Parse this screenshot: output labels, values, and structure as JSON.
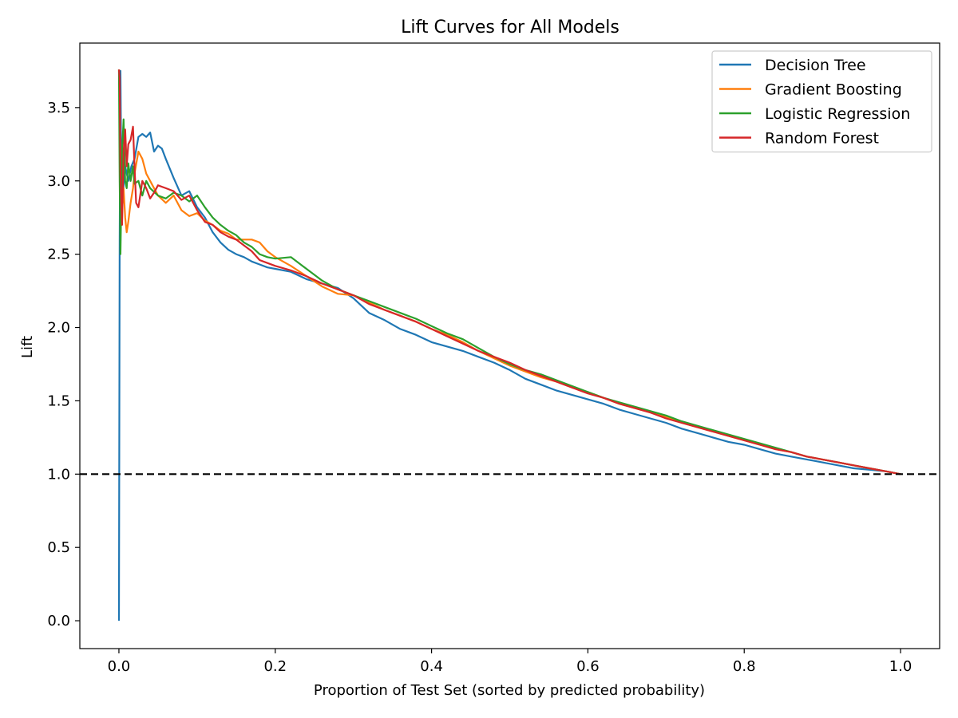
{
  "chart_data": {
    "type": "line",
    "title": "Lift Curves for All Models",
    "xlabel": "Proportion of Test Set (sorted by predicted probability)",
    "ylabel": "Lift",
    "xlim": [
      -0.05,
      1.05
    ],
    "ylim": [
      -0.19,
      3.94
    ],
    "xticks": [
      0.0,
      0.2,
      0.4,
      0.6,
      0.8,
      1.0
    ],
    "xtick_labels": [
      "0.0",
      "0.2",
      "0.4",
      "0.6",
      "0.8",
      "1.0"
    ],
    "yticks": [
      0.0,
      0.5,
      1.0,
      1.5,
      2.0,
      2.5,
      3.0,
      3.5
    ],
    "ytick_labels": [
      "0.0",
      "0.5",
      "1.0",
      "1.5",
      "2.0",
      "2.5",
      "3.0",
      "3.5"
    ],
    "grid": false,
    "legend_position": "top-right",
    "baseline": {
      "y": 1.0,
      "style": "dashed",
      "color": "#000000"
    },
    "series": [
      {
        "name": "Decision Tree",
        "color": "#1f77b4",
        "points": [
          [
            0.0,
            0.0
          ],
          [
            0.001,
            2.6
          ],
          [
            0.002,
            3.75
          ],
          [
            0.003,
            3.05
          ],
          [
            0.005,
            2.9
          ],
          [
            0.008,
            3.1
          ],
          [
            0.012,
            3.0
          ],
          [
            0.016,
            3.1
          ],
          [
            0.02,
            3.15
          ],
          [
            0.025,
            3.3
          ],
          [
            0.03,
            3.32
          ],
          [
            0.035,
            3.3
          ],
          [
            0.04,
            3.33
          ],
          [
            0.045,
            3.2
          ],
          [
            0.05,
            3.24
          ],
          [
            0.055,
            3.22
          ],
          [
            0.06,
            3.15
          ],
          [
            0.07,
            3.02
          ],
          [
            0.08,
            2.9
          ],
          [
            0.09,
            2.93
          ],
          [
            0.1,
            2.82
          ],
          [
            0.11,
            2.75
          ],
          [
            0.12,
            2.65
          ],
          [
            0.13,
            2.58
          ],
          [
            0.14,
            2.53
          ],
          [
            0.15,
            2.5
          ],
          [
            0.16,
            2.48
          ],
          [
            0.17,
            2.45
          ],
          [
            0.18,
            2.43
          ],
          [
            0.19,
            2.41
          ],
          [
            0.2,
            2.4
          ],
          [
            0.22,
            2.38
          ],
          [
            0.24,
            2.33
          ],
          [
            0.26,
            2.3
          ],
          [
            0.28,
            2.27
          ],
          [
            0.3,
            2.2
          ],
          [
            0.32,
            2.1
          ],
          [
            0.34,
            2.05
          ],
          [
            0.36,
            1.99
          ],
          [
            0.38,
            1.95
          ],
          [
            0.4,
            1.9
          ],
          [
            0.42,
            1.87
          ],
          [
            0.44,
            1.84
          ],
          [
            0.46,
            1.8
          ],
          [
            0.48,
            1.76
          ],
          [
            0.5,
            1.71
          ],
          [
            0.52,
            1.65
          ],
          [
            0.54,
            1.61
          ],
          [
            0.56,
            1.57
          ],
          [
            0.58,
            1.54
          ],
          [
            0.6,
            1.51
          ],
          [
            0.62,
            1.48
          ],
          [
            0.64,
            1.44
          ],
          [
            0.66,
            1.41
          ],
          [
            0.68,
            1.38
          ],
          [
            0.7,
            1.35
          ],
          [
            0.72,
            1.31
          ],
          [
            0.74,
            1.28
          ],
          [
            0.76,
            1.25
          ],
          [
            0.78,
            1.22
          ],
          [
            0.8,
            1.2
          ],
          [
            0.82,
            1.17
          ],
          [
            0.84,
            1.14
          ],
          [
            0.86,
            1.12
          ],
          [
            0.88,
            1.1
          ],
          [
            0.9,
            1.08
          ],
          [
            0.92,
            1.06
          ],
          [
            0.94,
            1.04
          ],
          [
            0.96,
            1.03
          ],
          [
            0.98,
            1.02
          ],
          [
            1.0,
            1.0
          ]
        ]
      },
      {
        "name": "Gradient Boosting",
        "color": "#ff7f0e",
        "points": [
          [
            0.0,
            3.76
          ],
          [
            0.001,
            3.55
          ],
          [
            0.002,
            3.1
          ],
          [
            0.004,
            2.8
          ],
          [
            0.006,
            2.95
          ],
          [
            0.008,
            2.75
          ],
          [
            0.01,
            2.65
          ],
          [
            0.012,
            2.72
          ],
          [
            0.015,
            2.85
          ],
          [
            0.018,
            2.95
          ],
          [
            0.02,
            3.05
          ],
          [
            0.025,
            3.2
          ],
          [
            0.03,
            3.15
          ],
          [
            0.035,
            3.05
          ],
          [
            0.04,
            3.0
          ],
          [
            0.05,
            2.9
          ],
          [
            0.06,
            2.85
          ],
          [
            0.07,
            2.9
          ],
          [
            0.08,
            2.8
          ],
          [
            0.09,
            2.76
          ],
          [
            0.1,
            2.78
          ],
          [
            0.11,
            2.73
          ],
          [
            0.12,
            2.7
          ],
          [
            0.13,
            2.66
          ],
          [
            0.14,
            2.64
          ],
          [
            0.15,
            2.6
          ],
          [
            0.16,
            2.6
          ],
          [
            0.17,
            2.6
          ],
          [
            0.18,
            2.58
          ],
          [
            0.19,
            2.52
          ],
          [
            0.2,
            2.48
          ],
          [
            0.22,
            2.42
          ],
          [
            0.24,
            2.35
          ],
          [
            0.26,
            2.28
          ],
          [
            0.28,
            2.23
          ],
          [
            0.3,
            2.22
          ],
          [
            0.32,
            2.17
          ],
          [
            0.34,
            2.12
          ],
          [
            0.36,
            2.08
          ],
          [
            0.38,
            2.04
          ],
          [
            0.4,
            1.99
          ],
          [
            0.42,
            1.95
          ],
          [
            0.44,
            1.9
          ],
          [
            0.46,
            1.84
          ],
          [
            0.48,
            1.79
          ],
          [
            0.5,
            1.74
          ],
          [
            0.52,
            1.7
          ],
          [
            0.54,
            1.66
          ],
          [
            0.56,
            1.63
          ],
          [
            0.58,
            1.59
          ],
          [
            0.6,
            1.56
          ],
          [
            0.62,
            1.52
          ],
          [
            0.64,
            1.48
          ],
          [
            0.66,
            1.45
          ],
          [
            0.68,
            1.42
          ],
          [
            0.7,
            1.39
          ],
          [
            0.72,
            1.35
          ],
          [
            0.74,
            1.32
          ],
          [
            0.76,
            1.29
          ],
          [
            0.78,
            1.26
          ],
          [
            0.8,
            1.23
          ],
          [
            0.82,
            1.2
          ],
          [
            0.84,
            1.17
          ],
          [
            0.86,
            1.15
          ],
          [
            0.88,
            1.12
          ],
          [
            0.9,
            1.1
          ],
          [
            0.92,
            1.08
          ],
          [
            0.94,
            1.06
          ],
          [
            0.96,
            1.04
          ],
          [
            0.98,
            1.02
          ],
          [
            1.0,
            1.0
          ]
        ]
      },
      {
        "name": "Logistic Regression",
        "color": "#2ca02c",
        "points": [
          [
            0.0,
            3.76
          ],
          [
            0.001,
            3.0
          ],
          [
            0.002,
            2.5
          ],
          [
            0.004,
            3.2
          ],
          [
            0.006,
            3.42
          ],
          [
            0.008,
            3.0
          ],
          [
            0.01,
            2.95
          ],
          [
            0.012,
            3.12
          ],
          [
            0.015,
            3.0
          ],
          [
            0.018,
            3.1
          ],
          [
            0.02,
            2.98
          ],
          [
            0.025,
            3.0
          ],
          [
            0.03,
            2.9
          ],
          [
            0.035,
            3.0
          ],
          [
            0.04,
            2.95
          ],
          [
            0.05,
            2.9
          ],
          [
            0.06,
            2.88
          ],
          [
            0.07,
            2.92
          ],
          [
            0.08,
            2.9
          ],
          [
            0.09,
            2.86
          ],
          [
            0.1,
            2.9
          ],
          [
            0.11,
            2.82
          ],
          [
            0.12,
            2.75
          ],
          [
            0.13,
            2.7
          ],
          [
            0.14,
            2.66
          ],
          [
            0.15,
            2.63
          ],
          [
            0.16,
            2.58
          ],
          [
            0.17,
            2.55
          ],
          [
            0.18,
            2.5
          ],
          [
            0.19,
            2.48
          ],
          [
            0.2,
            2.47
          ],
          [
            0.22,
            2.48
          ],
          [
            0.24,
            2.4
          ],
          [
            0.26,
            2.32
          ],
          [
            0.28,
            2.26
          ],
          [
            0.3,
            2.22
          ],
          [
            0.32,
            2.18
          ],
          [
            0.34,
            2.14
          ],
          [
            0.36,
            2.1
          ],
          [
            0.38,
            2.06
          ],
          [
            0.4,
            2.01
          ],
          [
            0.42,
            1.96
          ],
          [
            0.44,
            1.92
          ],
          [
            0.46,
            1.86
          ],
          [
            0.48,
            1.8
          ],
          [
            0.5,
            1.75
          ],
          [
            0.52,
            1.71
          ],
          [
            0.54,
            1.68
          ],
          [
            0.56,
            1.64
          ],
          [
            0.58,
            1.6
          ],
          [
            0.6,
            1.56
          ],
          [
            0.62,
            1.52
          ],
          [
            0.64,
            1.49
          ],
          [
            0.66,
            1.46
          ],
          [
            0.68,
            1.43
          ],
          [
            0.7,
            1.4
          ],
          [
            0.72,
            1.36
          ],
          [
            0.74,
            1.33
          ],
          [
            0.76,
            1.3
          ],
          [
            0.78,
            1.27
          ],
          [
            0.8,
            1.24
          ],
          [
            0.82,
            1.21
          ],
          [
            0.84,
            1.18
          ],
          [
            0.86,
            1.15
          ],
          [
            0.88,
            1.12
          ],
          [
            0.9,
            1.1
          ],
          [
            0.92,
            1.08
          ],
          [
            0.94,
            1.06
          ],
          [
            0.96,
            1.04
          ],
          [
            0.98,
            1.02
          ],
          [
            1.0,
            1.0
          ]
        ]
      },
      {
        "name": "Random Forest",
        "color": "#d62728",
        "points": [
          [
            0.0,
            3.76
          ],
          [
            0.001,
            3.7
          ],
          [
            0.002,
            3.05
          ],
          [
            0.004,
            2.7
          ],
          [
            0.006,
            3.2
          ],
          [
            0.008,
            3.35
          ],
          [
            0.01,
            3.1
          ],
          [
            0.012,
            3.25
          ],
          [
            0.015,
            3.28
          ],
          [
            0.018,
            3.37
          ],
          [
            0.02,
            3.1
          ],
          [
            0.022,
            2.85
          ],
          [
            0.025,
            2.82
          ],
          [
            0.03,
            3.0
          ],
          [
            0.035,
            2.95
          ],
          [
            0.04,
            2.88
          ],
          [
            0.045,
            2.92
          ],
          [
            0.05,
            2.97
          ],
          [
            0.06,
            2.95
          ],
          [
            0.07,
            2.93
          ],
          [
            0.08,
            2.87
          ],
          [
            0.09,
            2.9
          ],
          [
            0.1,
            2.8
          ],
          [
            0.11,
            2.72
          ],
          [
            0.12,
            2.7
          ],
          [
            0.13,
            2.65
          ],
          [
            0.14,
            2.62
          ],
          [
            0.15,
            2.6
          ],
          [
            0.16,
            2.56
          ],
          [
            0.17,
            2.52
          ],
          [
            0.18,
            2.46
          ],
          [
            0.19,
            2.44
          ],
          [
            0.2,
            2.42
          ],
          [
            0.22,
            2.39
          ],
          [
            0.24,
            2.35
          ],
          [
            0.26,
            2.3
          ],
          [
            0.28,
            2.26
          ],
          [
            0.3,
            2.22
          ],
          [
            0.32,
            2.16
          ],
          [
            0.34,
            2.12
          ],
          [
            0.36,
            2.08
          ],
          [
            0.38,
            2.04
          ],
          [
            0.4,
            1.99
          ],
          [
            0.42,
            1.94
          ],
          [
            0.44,
            1.89
          ],
          [
            0.46,
            1.84
          ],
          [
            0.48,
            1.8
          ],
          [
            0.5,
            1.76
          ],
          [
            0.52,
            1.71
          ],
          [
            0.54,
            1.67
          ],
          [
            0.56,
            1.63
          ],
          [
            0.58,
            1.59
          ],
          [
            0.6,
            1.55
          ],
          [
            0.62,
            1.52
          ],
          [
            0.64,
            1.48
          ],
          [
            0.66,
            1.45
          ],
          [
            0.68,
            1.42
          ],
          [
            0.7,
            1.38
          ],
          [
            0.72,
            1.35
          ],
          [
            0.74,
            1.32
          ],
          [
            0.76,
            1.29
          ],
          [
            0.78,
            1.26
          ],
          [
            0.8,
            1.23
          ],
          [
            0.82,
            1.2
          ],
          [
            0.84,
            1.17
          ],
          [
            0.86,
            1.15
          ],
          [
            0.88,
            1.12
          ],
          [
            0.9,
            1.1
          ],
          [
            0.92,
            1.08
          ],
          [
            0.94,
            1.06
          ],
          [
            0.96,
            1.04
          ],
          [
            0.98,
            1.02
          ],
          [
            1.0,
            1.0
          ]
        ]
      }
    ]
  }
}
